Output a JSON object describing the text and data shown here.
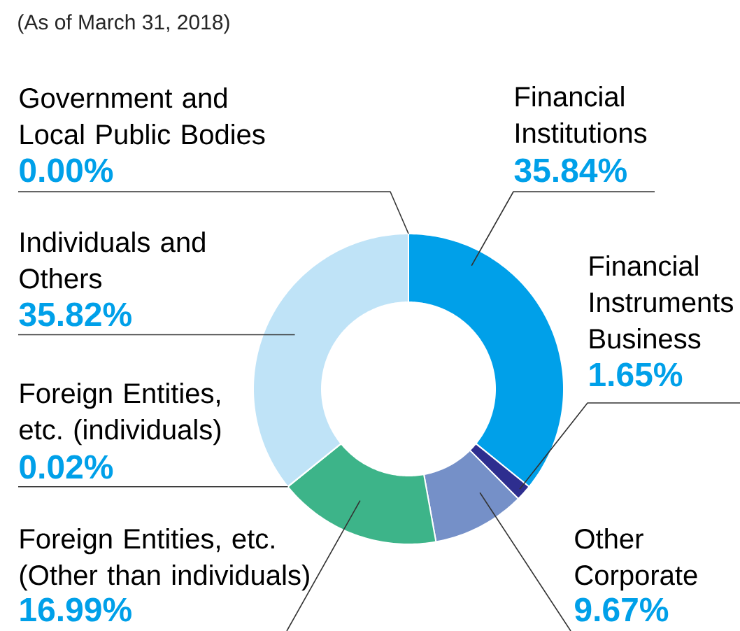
{
  "chart_data": {
    "type": "donut",
    "subtitle": "(As of March 31, 2018)",
    "categories": [
      "Financial Institutions",
      "Financial Instruments Business",
      "Other Corporate",
      "Foreign Entities, etc. (Other than individuals)",
      "Foreign Entities, etc. (individuals)",
      "Individuals and Others",
      "Government and Local Public Bodies"
    ],
    "values": [
      35.84,
      1.65,
      9.67,
      16.99,
      0.02,
      35.82,
      0.0
    ],
    "colors": [
      "#00a0e9",
      "#2e2e8f",
      "#7590c8",
      "#3db489",
      "#3db489",
      "#bfe3f7",
      null
    ],
    "value_labels": [
      "35.84%",
      "1.65%",
      "9.67%",
      "16.99%",
      "0.02%",
      "35.82%",
      "0.00%"
    ]
  }
}
